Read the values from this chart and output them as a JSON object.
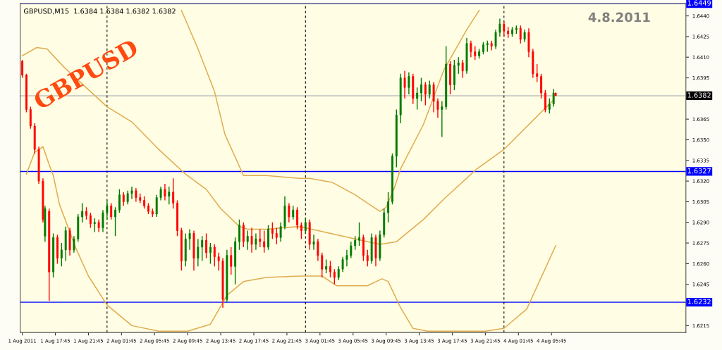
{
  "chart_data": {
    "type": "candlestick",
    "title": "GBPUSD",
    "subtitle": "GBPUSD,M15  1.6384 1.6384 1.6382 1.6382",
    "annotations": [
      "4.8.2011"
    ],
    "x": [
      "2011-08-01T13:45",
      "2011-08-01T14:15",
      "2011-08-01T14:45",
      "2011-08-01T15:15",
      "2011-08-01T15:45",
      "2011-08-01T16:15",
      "2011-08-01T16:30",
      "2011-08-01T17:00",
      "2011-08-01T17:30",
      "2011-08-01T18:00",
      "2011-08-01T18:30",
      "2011-08-01T19:00",
      "2011-08-01T19:30",
      "2011-08-01T20:00",
      "2011-08-01T20:30",
      "2011-08-01T21:00",
      "2011-08-01T21:30",
      "2011-08-01T22:00",
      "2011-08-01T22:30",
      "2011-08-01T23:00",
      "2011-08-01T23:30",
      "2011-08-02T00:00",
      "2011-08-02T00:30",
      "2011-08-02T01:00",
      "2011-08-02T01:30",
      "2011-08-02T02:00",
      "2011-08-02T02:30",
      "2011-08-02T03:00",
      "2011-08-02T03:30",
      "2011-08-02T04:00",
      "2011-08-02T04:30",
      "2011-08-02T05:00",
      "2011-08-02T05:30",
      "2011-08-02T06:00",
      "2011-08-02T06:30",
      "2011-08-02T07:00",
      "2011-08-02T07:30",
      "2011-08-02T08:00",
      "2011-08-02T08:30",
      "2011-08-02T09:00",
      "2011-08-02T09:30",
      "2011-08-02T10:00",
      "2011-08-02T10:30",
      "2011-08-02T11:00",
      "2011-08-02T11:30",
      "2011-08-02T12:00",
      "2011-08-02T12:30",
      "2011-08-02T13:00",
      "2011-08-02T13:30",
      "2011-08-02T14:00",
      "2011-08-02T14:30",
      "2011-08-02T15:00",
      "2011-08-02T15:30",
      "2011-08-02T16:00",
      "2011-08-02T16:30",
      "2011-08-02T17:00",
      "2011-08-02T17:30",
      "2011-08-02T18:00",
      "2011-08-02T18:30",
      "2011-08-02T19:00",
      "2011-08-02T19:30",
      "2011-08-02T20:00",
      "2011-08-02T20:30",
      "2011-08-02T21:00",
      "2011-08-02T21:30",
      "2011-08-02T22:00",
      "2011-08-02T22:30",
      "2011-08-02T23:00",
      "2011-08-02T23:30",
      "2011-08-03T00:00",
      "2011-08-03T00:30",
      "2011-08-03T01:00",
      "2011-08-03T01:30",
      "2011-08-03T02:00",
      "2011-08-03T02:30",
      "2011-08-03T03:00",
      "2011-08-03T03:30",
      "2011-08-03T04:00",
      "2011-08-03T04:30",
      "2011-08-03T05:00",
      "2011-08-03T05:30",
      "2011-08-03T06:00",
      "2011-08-03T06:30",
      "2011-08-03T07:00",
      "2011-08-03T07:30",
      "2011-08-03T08:00",
      "2011-08-03T08:30",
      "2011-08-03T09:00",
      "2011-08-03T09:30",
      "2011-08-03T10:00",
      "2011-08-03T10:30",
      "2011-08-03T11:00",
      "2011-08-03T11:30",
      "2011-08-03T12:00",
      "2011-08-03T12:30",
      "2011-08-03T13:00",
      "2011-08-03T13:30",
      "2011-08-03T14:00",
      "2011-08-03T14:30",
      "2011-08-03T15:00",
      "2011-08-03T15:30",
      "2011-08-03T16:00",
      "2011-08-03T16:30",
      "2011-08-03T17:00",
      "2011-08-03T17:30",
      "2011-08-03T18:00",
      "2011-08-03T18:30",
      "2011-08-03T19:00",
      "2011-08-03T19:30",
      "2011-08-03T20:00",
      "2011-08-03T20:30",
      "2011-08-03T21:00",
      "2011-08-03T21:30",
      "2011-08-03T22:00",
      "2011-08-03T22:30",
      "2011-08-03T23:00",
      "2011-08-03T23:30",
      "2011-08-04T00:00",
      "2011-08-04T00:30",
      "2011-08-04T01:00",
      "2011-08-04T01:30",
      "2011-08-04T02:00",
      "2011-08-04T02:30",
      "2011-08-04T03:00",
      "2011-08-04T03:30",
      "2011-08-04T04:00",
      "2011-08-04T04:30",
      "2011-08-04T05:00",
      "2011-08-04T05:30",
      "2011-08-04T06:00",
      "2011-08-04T06:15"
    ],
    "ohlc": [
      [
        1.6407,
        1.6408,
        1.6395,
        1.6397
      ],
      [
        1.6397,
        1.6398,
        1.637,
        1.6372
      ],
      [
        1.6372,
        1.6374,
        1.6358,
        1.636
      ],
      [
        1.636,
        1.6362,
        1.634,
        1.6343
      ],
      [
        1.6343,
        1.6345,
        1.6318,
        1.632
      ],
      [
        1.632,
        1.6322,
        1.629,
        1.6292
      ],
      [
        1.628,
        1.6302,
        1.6276,
        1.63
      ],
      [
        1.6298,
        1.63,
        1.6233,
        1.6254
      ],
      [
        1.6254,
        1.6282,
        1.625,
        1.6279
      ],
      [
        1.6279,
        1.6281,
        1.626,
        1.6264
      ],
      [
        1.6264,
        1.6275,
        1.6258,
        1.627
      ],
      [
        1.627,
        1.6287,
        1.6262,
        1.6284
      ],
      [
        1.6284,
        1.6286,
        1.6266,
        1.627
      ],
      [
        1.627,
        1.628,
        1.6268,
        1.6278
      ],
      [
        1.6278,
        1.6296,
        1.6276,
        1.6294
      ],
      [
        1.6294,
        1.6304,
        1.629,
        1.6298
      ],
      [
        1.6298,
        1.6301,
        1.6292,
        1.6295
      ],
      [
        1.6295,
        1.6297,
        1.6286,
        1.6289
      ],
      [
        1.6289,
        1.6293,
        1.6283,
        1.629
      ],
      [
        1.629,
        1.6292,
        1.6283,
        1.6286
      ],
      [
        1.6286,
        1.6299,
        1.6283,
        1.6297
      ],
      [
        1.6297,
        1.6306,
        1.6292,
        1.6302
      ],
      [
        1.6302,
        1.6304,
        1.6292,
        1.6294
      ],
      [
        1.6294,
        1.6301,
        1.628,
        1.6299
      ],
      [
        1.6299,
        1.6314,
        1.6297,
        1.631
      ],
      [
        1.631,
        1.6312,
        1.6302,
        1.6305
      ],
      [
        1.6305,
        1.6313,
        1.6303,
        1.6311
      ],
      [
        1.6311,
        1.6316,
        1.6307,
        1.6313
      ],
      [
        1.6313,
        1.6315,
        1.6305,
        1.6308
      ],
      [
        1.6308,
        1.6311,
        1.6304,
        1.6306
      ],
      [
        1.6306,
        1.6309,
        1.63,
        1.6302
      ],
      [
        1.6302,
        1.6304,
        1.6296,
        1.6298
      ],
      [
        1.6298,
        1.63,
        1.6294,
        1.6296
      ],
      [
        1.6296,
        1.631,
        1.6294,
        1.6308
      ],
      [
        1.6308,
        1.6316,
        1.6306,
        1.6314
      ],
      [
        1.6314,
        1.6318,
        1.6306,
        1.6309
      ],
      [
        1.6309,
        1.6316,
        1.6303,
        1.6312
      ],
      [
        1.6312,
        1.6322,
        1.63,
        1.6304
      ],
      [
        1.6304,
        1.6306,
        1.628,
        1.6284
      ],
      [
        1.6284,
        1.6286,
        1.6255,
        1.6262
      ],
      [
        1.6262,
        1.6282,
        1.6258,
        1.6278
      ],
      [
        1.6278,
        1.6285,
        1.627,
        1.6282
      ],
      [
        1.6282,
        1.6284,
        1.6255,
        1.6264
      ],
      [
        1.6264,
        1.6278,
        1.6258,
        1.6272
      ],
      [
        1.6272,
        1.628,
        1.6262,
        1.6277
      ],
      [
        1.6277,
        1.6282,
        1.6264,
        1.6268
      ],
      [
        1.6268,
        1.6275,
        1.626,
        1.6272
      ],
      [
        1.6272,
        1.6274,
        1.6258,
        1.6265
      ],
      [
        1.6265,
        1.6268,
        1.6255,
        1.6262
      ],
      [
        1.6262,
        1.6264,
        1.6228,
        1.6234
      ],
      [
        1.6234,
        1.627,
        1.6232,
        1.6266
      ],
      [
        1.6266,
        1.6272,
        1.6252,
        1.6258
      ],
      [
        1.6258,
        1.6279,
        1.6245,
        1.6276
      ],
      [
        1.6276,
        1.6292,
        1.627,
        1.6288
      ],
      [
        1.6288,
        1.629,
        1.6272,
        1.6276
      ],
      [
        1.6276,
        1.6284,
        1.627,
        1.628
      ],
      [
        1.628,
        1.6286,
        1.6268,
        1.6274
      ],
      [
        1.6274,
        1.6282,
        1.627,
        1.6278
      ],
      [
        1.6278,
        1.6285,
        1.6272,
        1.6276
      ],
      [
        1.6276,
        1.6284,
        1.6268,
        1.6272
      ],
      [
        1.6272,
        1.6288,
        1.627,
        1.6285
      ],
      [
        1.6285,
        1.629,
        1.6278,
        1.6282
      ],
      [
        1.6282,
        1.6286,
        1.6274,
        1.6279
      ],
      [
        1.6279,
        1.629,
        1.6276,
        1.6287
      ],
      [
        1.6287,
        1.6309,
        1.6285,
        1.6302
      ],
      [
        1.6302,
        1.6304,
        1.629,
        1.6294
      ],
      [
        1.6294,
        1.6302,
        1.6292,
        1.6299
      ],
      [
        1.6299,
        1.6301,
        1.6285,
        1.6288
      ],
      [
        1.6288,
        1.629,
        1.6278,
        1.6284
      ],
      [
        1.6284,
        1.6293,
        1.6282,
        1.629
      ],
      [
        1.629,
        1.6292,
        1.627,
        1.6274
      ],
      [
        1.6274,
        1.6281,
        1.627,
        1.6276
      ],
      [
        1.6276,
        1.6278,
        1.6262,
        1.6266
      ],
      [
        1.6266,
        1.6268,
        1.625,
        1.6256
      ],
      [
        1.6256,
        1.6263,
        1.6253,
        1.6258
      ],
      [
        1.6258,
        1.6262,
        1.625,
        1.6254
      ],
      [
        1.6254,
        1.6256,
        1.6245,
        1.625
      ],
      [
        1.625,
        1.6258,
        1.6248,
        1.6256
      ],
      [
        1.6256,
        1.6265,
        1.6254,
        1.6263
      ],
      [
        1.6263,
        1.627,
        1.6258,
        1.6266
      ],
      [
        1.6266,
        1.6276,
        1.6264,
        1.6273
      ],
      [
        1.6273,
        1.628,
        1.627,
        1.6277
      ],
      [
        1.6277,
        1.629,
        1.6273,
        1.6279
      ],
      [
        1.6279,
        1.6281,
        1.6262,
        1.6266
      ],
      [
        1.6266,
        1.627,
        1.6258,
        1.6262
      ],
      [
        1.6262,
        1.6282,
        1.626,
        1.6279
      ],
      [
        1.6279,
        1.6281,
        1.6258,
        1.6264
      ],
      [
        1.6264,
        1.6284,
        1.6262,
        1.6281
      ],
      [
        1.6281,
        1.63,
        1.6279,
        1.6297
      ],
      [
        1.6297,
        1.6312,
        1.629,
        1.6305
      ],
      [
        1.6305,
        1.634,
        1.6303,
        1.6338
      ],
      [
        1.6338,
        1.6372,
        1.633,
        1.6368
      ],
      [
        1.6368,
        1.6398,
        1.6362,
        1.6395
      ],
      [
        1.6395,
        1.64,
        1.638,
        1.6388
      ],
      [
        1.6388,
        1.6399,
        1.6383,
        1.6396
      ],
      [
        1.6396,
        1.6398,
        1.6376,
        1.638
      ],
      [
        1.638,
        1.6388,
        1.6372,
        1.6384
      ],
      [
        1.6384,
        1.6395,
        1.6378,
        1.639
      ],
      [
        1.639,
        1.6392,
        1.6375,
        1.6383
      ],
      [
        1.6383,
        1.6393,
        1.638,
        1.639
      ],
      [
        1.639,
        1.6392,
        1.637,
        1.6378
      ],
      [
        1.6378,
        1.638,
        1.6366,
        1.6372
      ],
      [
        1.6372,
        1.6378,
        1.6352,
        1.6374
      ],
      [
        1.6374,
        1.6418,
        1.6372,
        1.6405
      ],
      [
        1.6405,
        1.6407,
        1.6383,
        1.639
      ],
      [
        1.639,
        1.6408,
        1.6386,
        1.6404
      ],
      [
        1.6404,
        1.641,
        1.6398,
        1.6406
      ],
      [
        1.6406,
        1.6408,
        1.6395,
        1.64
      ],
      [
        1.64,
        1.6424,
        1.6398,
        1.642
      ],
      [
        1.642,
        1.6422,
        1.641,
        1.6414
      ],
      [
        1.6414,
        1.6418,
        1.6408,
        1.6411
      ],
      [
        1.6411,
        1.6416,
        1.6409,
        1.6414
      ],
      [
        1.6414,
        1.6421,
        1.6412,
        1.6419
      ],
      [
        1.6419,
        1.6422,
        1.6414,
        1.642
      ],
      [
        1.642,
        1.6422,
        1.6415,
        1.6418
      ],
      [
        1.6418,
        1.643,
        1.6416,
        1.6428
      ],
      [
        1.6428,
        1.6438,
        1.6425,
        1.6434
      ],
      [
        1.6434,
        1.6436,
        1.6425,
        1.6429
      ],
      [
        1.6429,
        1.6432,
        1.6424,
        1.6427
      ],
      [
        1.6427,
        1.6432,
        1.6425,
        1.643
      ],
      [
        1.643,
        1.6433,
        1.6427,
        1.6431
      ],
      [
        1.6431,
        1.6433,
        1.642,
        1.6423
      ],
      [
        1.6423,
        1.643,
        1.6421,
        1.6428
      ],
      [
        1.6428,
        1.6431,
        1.641,
        1.6414
      ],
      [
        1.6414,
        1.6416,
        1.6395,
        1.6398
      ],
      [
        1.6398,
        1.6405,
        1.6392,
        1.6396
      ],
      [
        1.6396,
        1.6398,
        1.638,
        1.6384
      ],
      [
        1.6384,
        1.6386,
        1.637,
        1.6372
      ],
      [
        1.6372,
        1.638,
        1.6369,
        1.6376
      ],
      [
        1.6376,
        1.6387,
        1.6374,
        1.6384
      ],
      [
        1.6384,
        1.6384,
        1.6382,
        1.6382
      ]
    ],
    "series": [
      {
        "type": "line",
        "color": "#e0ac50",
        "x": [
          "2011-08-02T09:00",
          "2011-08-02T11:00",
          "2011-08-02T13:00",
          "2011-08-02T14:15",
          "2011-08-02T16:30",
          "2011-08-02T19:15",
          "2011-08-02T23:15",
          "2011-08-03T00:30",
          "2011-08-03T03:15",
          "2011-08-03T06:00",
          "2011-08-03T07:45",
          "2011-08-03T09:00",
          "2011-08-03T09:45",
          "2011-08-03T10:45",
          "2011-08-03T11:30",
          "2011-08-03T14:15",
          "2011-08-03T16:45",
          "2011-08-03T19:30",
          "2011-08-03T21:00"
        ],
        "values": [
          1.6444,
          1.6416,
          1.6385,
          1.6354,
          1.6324,
          1.6324,
          1.6322,
          1.6322,
          1.6319,
          1.631,
          1.6303,
          1.6298,
          1.6301,
          1.6315,
          1.6329,
          1.6361,
          1.6401,
          1.643,
          1.6444
        ]
      },
      {
        "type": "line",
        "color": "#e0ac50",
        "x": [
          "2011-08-01T13:45",
          "2011-08-01T15:30",
          "2011-08-01T16:45",
          "2011-08-01T18:45",
          "2011-08-02T00:00",
          "2011-08-02T03:00",
          "2011-08-02T06:15",
          "2011-08-02T09:30",
          "2011-08-02T12:00",
          "2011-08-02T13:45",
          "2011-08-02T16:00",
          "2011-08-02T17:00",
          "2011-08-02T19:15",
          "2011-08-02T23:15",
          "2011-08-03T00:00",
          "2011-08-03T06:00",
          "2011-08-03T09:00",
          "2011-08-03T11:00",
          "2011-08-03T14:15",
          "2011-08-03T16:45",
          "2011-08-03T20:45",
          "2011-08-04T00:00",
          "2011-08-04T06:00"
        ],
        "values": [
          1.6411,
          1.6417,
          1.6416,
          1.6403,
          1.6374,
          1.6363,
          1.6343,
          1.6325,
          1.6314,
          1.63,
          1.6287,
          1.6285,
          1.6285,
          1.6287,
          1.6286,
          1.6278,
          1.6274,
          1.6276,
          1.6292,
          1.6307,
          1.6329,
          1.6343,
          1.6379
        ]
      },
      {
        "type": "line",
        "color": "#e0ac50",
        "x": [
          "2011-08-01T14:15",
          "2011-08-01T15:15",
          "2011-08-01T16:15",
          "2011-08-01T17:00",
          "2011-08-01T17:30",
          "2011-08-01T18:15",
          "2011-08-01T20:15",
          "2011-08-01T21:45",
          "2011-08-02T00:00",
          "2011-08-02T03:00",
          "2011-08-02T06:15",
          "2011-08-02T09:45",
          "2011-08-02T12:30",
          "2011-08-02T14:30",
          "2011-08-02T16:30",
          "2011-08-02T19:15",
          "2011-08-02T23:15",
          "2011-08-03T02:00",
          "2011-08-03T03:45",
          "2011-08-03T07:30",
          "2011-08-03T09:15",
          "2011-08-03T10:00",
          "2011-08-03T11:30",
          "2011-08-03T13:00",
          "2011-08-03T14:45",
          "2011-08-03T18:15",
          "2011-08-03T21:45",
          "2011-08-04T00:00",
          "2011-08-04T02:45",
          "2011-08-04T06:15"
        ],
        "values": [
          1.6325,
          1.6341,
          1.6345,
          1.6332,
          1.6324,
          1.6303,
          1.6271,
          1.6251,
          1.623,
          1.6215,
          1.6211,
          1.6211,
          1.6216,
          1.6237,
          1.6247,
          1.625,
          1.6251,
          1.6251,
          1.6244,
          1.6244,
          1.6249,
          1.6247,
          1.6228,
          1.6213,
          1.6211,
          1.6211,
          1.6211,
          1.6213,
          1.6227,
          1.6273
        ]
      }
    ],
    "xlim": [
      "2011-08-01T13:30",
      "2011-08-04T22:00"
    ],
    "xticks": [
      {
        "value": "2011-08-01T13:45",
        "label": "1 Aug 2011"
      },
      {
        "value": "2011-08-01T17:45",
        "label": "1 Aug 17:45"
      },
      {
        "value": "2011-08-01T21:45",
        "label": "1 Aug 21:45"
      },
      {
        "value": "2011-08-02T01:45",
        "label": "2 Aug 01:45"
      },
      {
        "value": "2011-08-02T05:45",
        "label": "2 Aug 05:45"
      },
      {
        "value": "2011-08-02T09:45",
        "label": "2 Aug 09:45"
      },
      {
        "value": "2011-08-02T13:45",
        "label": "2 Aug 13:45"
      },
      {
        "value": "2011-08-02T17:45",
        "label": "2 Aug 17:45"
      },
      {
        "value": "2011-08-02T21:45",
        "label": "2 Aug 21:45"
      },
      {
        "value": "2011-08-03T01:45",
        "label": "3 Aug 01:45"
      },
      {
        "value": "2011-08-03T05:45",
        "label": "3 Aug 05:45"
      },
      {
        "value": "2011-08-03T09:45",
        "label": "3 Aug 09:45"
      },
      {
        "value": "2011-08-03T13:45",
        "label": "3 Aug 13:45"
      },
      {
        "value": "2011-08-03T17:45",
        "label": "3 Aug 17:45"
      },
      {
        "value": "2011-08-03T21:45",
        "label": "3 Aug 21:45"
      },
      {
        "value": "2011-08-04T01:45",
        "label": "4 Aug 01:45"
      },
      {
        "value": "2011-08-04T05:45",
        "label": "4 Aug 05:45"
      }
    ],
    "ylim": [
      1.621,
      1.6449
    ],
    "yticks": [
      {
        "value": 1.644,
        "label": "1.6440"
      },
      1.6425,
      {
        "value": 1.641,
        "label": "1.6410"
      },
      1.6395,
      {
        "value": 1.638,
        "label": null
      },
      1.6365,
      {
        "value": 1.635,
        "label": "1.6350"
      },
      1.6335,
      {
        "value": 1.632,
        "label": "1.6320"
      },
      1.6305,
      {
        "value": 1.629,
        "label": "1.6290"
      },
      1.6275,
      {
        "value": 1.626,
        "label": "1.6260"
      },
      1.6245,
      {
        "value": 1.623,
        "label": null
      },
      1.6215
    ],
    "ref_lines": [
      {
        "axis": "y",
        "value": 1.6449,
        "label": "1.6449",
        "color": "#0000ff"
      },
      {
        "axis": "y",
        "value": 1.6382,
        "label": "1.6382",
        "color": "#c0c0c0"
      },
      {
        "axis": "y",
        "value": 1.6327,
        "label": "1.6327",
        "color": "#0000ff"
      },
      {
        "axis": "y",
        "value": 1.6232,
        "label": "1.6232",
        "color": "#0000ff"
      },
      {
        "axis": "x",
        "value": "2011-08-02T00:00",
        "color": "#000000",
        "line_style": "dashed"
      },
      {
        "axis": "x",
        "value": "2011-08-03T00:00",
        "color": "#000000",
        "line_style": "dashed"
      },
      {
        "axis": "x",
        "value": "2011-08-04T00:00",
        "color": "#000000",
        "line_style": "dashed"
      }
    ],
    "grid": false,
    "legend": false
  }
}
